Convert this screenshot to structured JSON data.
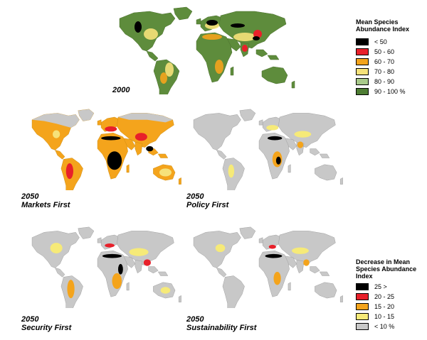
{
  "maps": [
    {
      "id": "map-2000",
      "caption_year": "2000",
      "caption_scenario": ""
    },
    {
      "id": "map-markets-first",
      "caption_year": "2050",
      "caption_scenario": "Markets First"
    },
    {
      "id": "map-policy-first",
      "caption_year": "2050",
      "caption_scenario": "Policy First"
    },
    {
      "id": "map-security-first",
      "caption_year": "2050",
      "caption_scenario": "Security First"
    },
    {
      "id": "map-sustainability-first",
      "caption_year": "2050",
      "caption_scenario": "Sustainability First"
    }
  ],
  "legend_msa": {
    "title_line1": "Mean Species",
    "title_line2": "Abundance Index",
    "items": [
      {
        "label": "<  50",
        "color": "#000000"
      },
      {
        "label": "50  -  60",
        "color": "#e8202a"
      },
      {
        "label": "60  -  70",
        "color": "#f4a41c"
      },
      {
        "label": "70  -  80",
        "color": "#f6e27a"
      },
      {
        "label": "80  -  90",
        "color": "#a8c98a"
      },
      {
        "label": "90  -  100 %",
        "color": "#4e7d33"
      }
    ]
  },
  "legend_decrease": {
    "title_line1": "Decrease in Mean",
    "title_line2": "Species Abundance",
    "title_line3": "Index",
    "items": [
      {
        "label": "25  >",
        "color": "#000000"
      },
      {
        "label": "20  -  25",
        "color": "#e8202a"
      },
      {
        "label": "15  -  20",
        "color": "#f4a41c"
      },
      {
        "label": "10  -  15",
        "color": "#f6ea78"
      },
      {
        "label": "<  10  %",
        "color": "#c8c8c8"
      }
    ]
  }
}
